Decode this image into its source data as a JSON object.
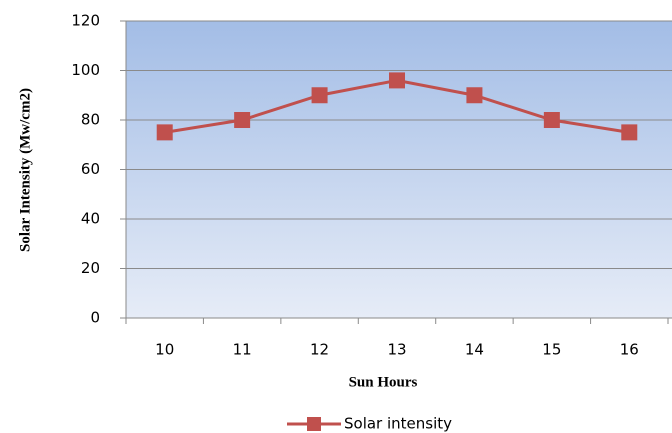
{
  "chart_data": {
    "type": "line",
    "categories": [
      "10",
      "11",
      "12",
      "13",
      "14",
      "15",
      "16"
    ],
    "series": [
      {
        "name": "Solar intensity",
        "color": "#c0504d",
        "values": [
          75,
          80,
          90,
          96,
          90,
          80,
          75
        ]
      }
    ],
    "xlabel": "Sun Hours",
    "ylabel": "Solar Intensity (Mw/cm2)",
    "ylim": [
      0,
      120
    ],
    "yticks": [
      0,
      20,
      40,
      60,
      80,
      100,
      120
    ],
    "grid": true,
    "legend": "bottom"
  }
}
